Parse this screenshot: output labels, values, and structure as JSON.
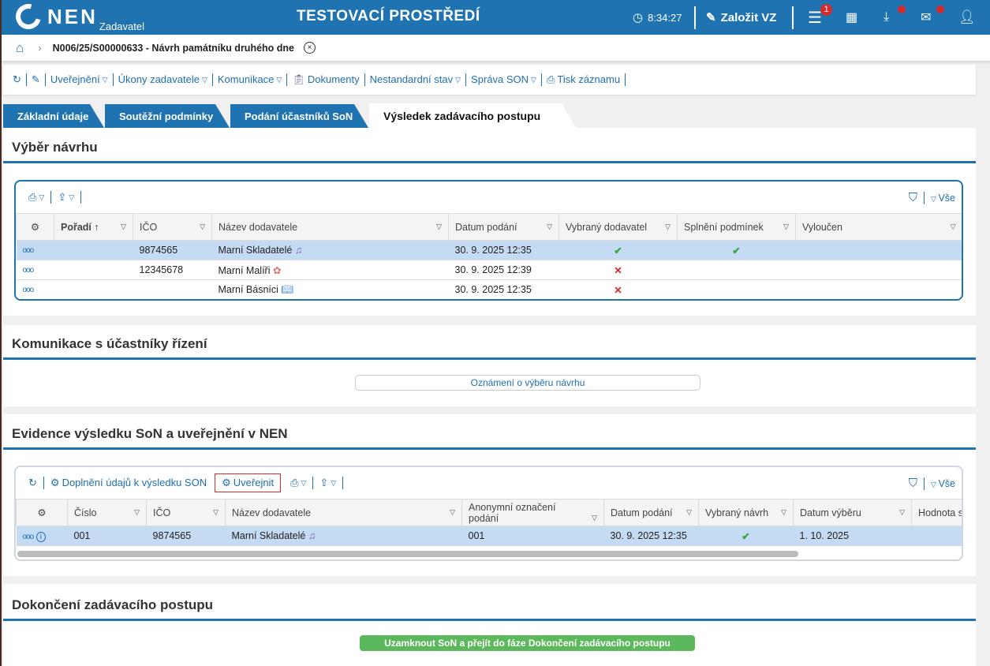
{
  "header": {
    "logo": "NEN",
    "logo_sub": "Zadavatel",
    "env": "TESTOVACÍ PROSTŘEDÍ",
    "time": "8:34:27",
    "create": "Založit VZ",
    "menu_badge": "1"
  },
  "breadcrumb": {
    "title": "N006/25/S00000633 - Návrh památníku druhého dne"
  },
  "toolbar": [
    "Uveřejnění",
    "Úkony zadavatele",
    "Komunikace",
    "Dokumenty",
    "Nestandardní stav",
    "Správa SON",
    "Tisk záznamu"
  ],
  "tabs": [
    "Základní údaje",
    "Soutěžní podmínky",
    "Podání účastníků SoN",
    "Výsledek zadávacího postupu"
  ],
  "s1": {
    "title": "Výběr návrhu",
    "all": "Vše",
    "cols": [
      "Pořadí",
      "IČO",
      "Název dodavatele",
      "Datum podání",
      "Vybraný dodavatel",
      "Splnění podmínek",
      "Vyloučen"
    ],
    "rows": [
      {
        "ico": "9874565",
        "name": "Marní Skladatelé",
        "icon": "music-icon",
        "date": "30. 9. 2025 12:35",
        "selected": "✔",
        "cond": "✔"
      },
      {
        "ico": "12345678",
        "name": "Marní Malíři",
        "icon": "palette-icon",
        "date": "30. 9. 2025 12:39",
        "selected": "✕",
        "cond": ""
      },
      {
        "ico": "",
        "name": "Marní Básníci",
        "icon": "book-icon",
        "date": "30. 9. 2025 12:35",
        "selected": "✕",
        "cond": ""
      }
    ]
  },
  "s2": {
    "title": "Komunikace s účastníky řízení",
    "button": "Oznámení o výběru návrhu"
  },
  "s3": {
    "title": "Evidence výsledku SoN a uveřejnění v NEN",
    "btn_fill": "Doplnění údajů k výsledku SON",
    "btn_publish": "Uveřejnit",
    "all": "Vše",
    "cols": [
      "Číslo",
      "IČO",
      "Název dodavatele",
      "Anonymní označení podání",
      "Datum podání",
      "Vybraný návrh",
      "Datum výběru",
      "Hodnota s"
    ],
    "rows": [
      {
        "num": "001",
        "ico": "9874565",
        "name": "Marní Skladatelé",
        "anon": "001",
        "date": "30. 9. 2025 12:35",
        "selected": "✔",
        "sel_date": "1. 10. 2025",
        "value": ""
      }
    ]
  },
  "s4": {
    "title": "Dokončení zadávacího postupu",
    "button": "Uzamknout SoN a přejít do fáze Dokončení zadávacího postupu"
  },
  "colors": {
    "brand": "#1f73b1",
    "ok": "#3aa640",
    "error": "#d62b2b",
    "selected_row": "#c5daf3",
    "green_button": "#5cb85c"
  }
}
